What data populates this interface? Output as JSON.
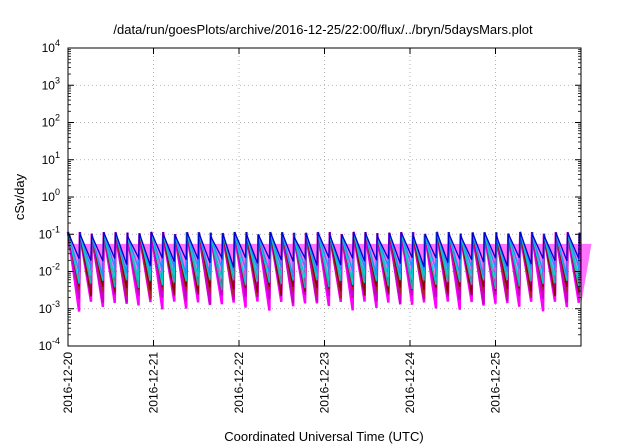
{
  "chart_data": {
    "type": "line",
    "title": "/data/run/goesPlots/archive/2016-12-25/22:00/flux/../bryn/5daysMars.plot",
    "xlabel": "Coordinated Universal Time (UTC)",
    "ylabel": "cSv/day",
    "yscale": "log",
    "ylim": [
      0.0001,
      10000
    ],
    "xlim": [
      "2016-12-20T00:00",
      "2016-12-26T00:00"
    ],
    "x_ticks": [
      "2016-12-20",
      "2016-12-21",
      "2016-12-22",
      "2016-12-23",
      "2016-12-24",
      "2016-12-25"
    ],
    "y_ticks": [
      {
        "base": "10",
        "exp": "-4",
        "value": 0.0001
      },
      {
        "base": "10",
        "exp": "-3",
        "value": 0.001
      },
      {
        "base": "10",
        "exp": "-2",
        "value": 0.01
      },
      {
        "base": "10",
        "exp": "-1",
        "value": 0.1
      },
      {
        "base": "10",
        "exp": "0",
        "value": 1
      },
      {
        "base": "10",
        "exp": "1",
        "value": 10
      },
      {
        "base": "10",
        "exp": "2",
        "value": 100
      },
      {
        "base": "10",
        "exp": "3",
        "value": 1000
      },
      {
        "base": "10",
        "exp": "4",
        "value": 10000
      }
    ],
    "grid": true,
    "pattern": {
      "description_free": true,
      "period_hours": 3.34,
      "peak_value": 0.1,
      "trough_values": [
        0.0012,
        0.0018,
        0.0025,
        0.003,
        0.0045,
        0.006,
        0.01,
        0.018
      ],
      "colors": [
        "#ff00ff",
        "#cc00cc",
        "#b22222",
        "#8b0000",
        "#20b2aa",
        "#00ced1",
        "#1e90ff",
        "#0000cd"
      ]
    }
  }
}
